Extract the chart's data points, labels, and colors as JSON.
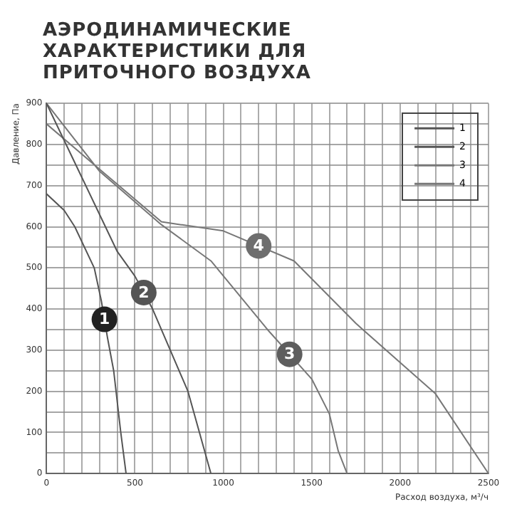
{
  "chart_data": {
    "type": "line",
    "title": "АЭРОДИНАМИЧЕСКИЕ ХАРАКТЕРИСТИКИ ДЛЯ ПРИТОЧНОГО ВОЗДУХА",
    "xlabel": "Расход воздуха, м³/ч",
    "ylabel": "Давление, Па",
    "series": [
      {
        "name": "1",
        "color": "#555555",
        "x": [
          0,
          100,
          160,
          270,
          310,
          345,
          380,
          420,
          450
        ],
        "values": [
          680,
          640,
          600,
          500,
          420,
          330,
          250,
          100,
          0
        ]
      },
      {
        "name": "2",
        "color": "#555555",
        "x": [
          0,
          200,
          400,
          500,
          600,
          700,
          800,
          930
        ],
        "values": [
          900,
          720,
          540,
          480,
          400,
          300,
          200,
          0
        ]
      },
      {
        "name": "3",
        "color": "#777777",
        "x": [
          0,
          300,
          650,
          930,
          1250,
          1500,
          1600,
          1650,
          1700
        ],
        "values": [
          900,
          735,
          605,
          517,
          350,
          230,
          145,
          55,
          0
        ]
      },
      {
        "name": "4",
        "color": "#777777",
        "x": [
          0,
          300,
          650,
          1000,
          1400,
          1750,
          2200,
          2500
        ],
        "values": [
          850,
          740,
          612,
          590,
          517,
          365,
          194,
          0
        ]
      }
    ],
    "xlim": [
      0,
      2500
    ],
    "xticks": [
      0,
      {
        "value": 100,
        "label": null
      },
      {
        "value": 200,
        "label": null
      },
      {
        "value": 300,
        "label": null
      },
      {
        "value": 400,
        "label": null
      },
      500,
      {
        "value": 600,
        "label": null
      },
      {
        "value": 700,
        "label": null
      },
      {
        "value": 800,
        "label": null
      },
      {
        "value": 900,
        "label": null
      },
      1000,
      {
        "value": 1100,
        "label": null
      },
      {
        "value": 1200,
        "label": null
      },
      {
        "value": 1300,
        "label": null
      },
      {
        "value": 1400,
        "label": null
      },
      1500,
      {
        "value": 1600,
        "label": null
      },
      {
        "value": 1700,
        "label": null
      },
      {
        "value": 1800,
        "label": null
      },
      {
        "value": 1900,
        "label": null
      },
      2000,
      {
        "value": 2100,
        "label": null
      },
      {
        "value": 2200,
        "label": null
      },
      {
        "value": 2300,
        "label": null
      },
      {
        "value": 2400,
        "label": null
      },
      2500
    ],
    "ylim": [
      0,
      900
    ],
    "yticks": [
      0,
      {
        "value": 50,
        "label": null
      },
      100,
      {
        "value": 150,
        "label": null
      },
      200,
      {
        "value": 250,
        "label": null
      },
      300,
      {
        "value": 350,
        "label": null
      },
      400,
      {
        "value": 450,
        "label": null
      },
      500,
      {
        "value": 550,
        "label": null
      },
      600,
      {
        "value": 650,
        "label": null
      },
      700,
      {
        "value": 750,
        "label": null
      },
      800,
      {
        "value": 850,
        "label": null
      },
      900
    ],
    "grid": true,
    "legend": "top right",
    "marker": "none",
    "line_style": "solid"
  }
}
